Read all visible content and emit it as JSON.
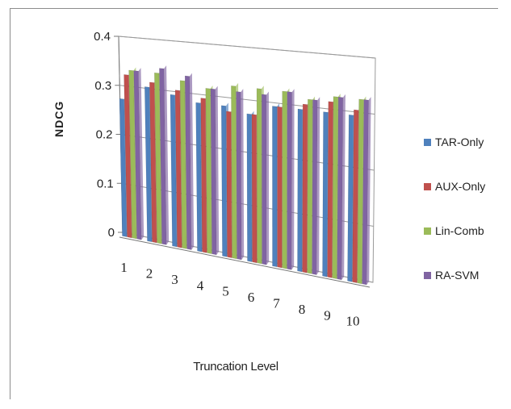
{
  "chart_data": {
    "type": "bar",
    "xlabel": "Truncation Level",
    "ylabel": "NDCG",
    "ylim": [
      0,
      0.4
    ],
    "yticks": [
      "0",
      "0.1",
      "0.2",
      "0.3",
      "0.4"
    ],
    "categories": [
      "1",
      "2",
      "3",
      "4",
      "5",
      "6",
      "7",
      "8",
      "9",
      "10"
    ],
    "series": [
      {
        "name": "TAR-Only",
        "color": "#4F81BD",
        "values": [
          0.28,
          0.31,
          0.3,
          0.29,
          0.29,
          0.28,
          0.3,
          0.3,
          0.3,
          0.3
        ]
      },
      {
        "name": "AUX-Only",
        "color": "#C0504D",
        "values": [
          0.33,
          0.32,
          0.31,
          0.3,
          0.28,
          0.28,
          0.3,
          0.31,
          0.32,
          0.31
        ]
      },
      {
        "name": "Lin-Comb",
        "color": "#9BBB59",
        "values": [
          0.34,
          0.34,
          0.33,
          0.32,
          0.33,
          0.33,
          0.33,
          0.32,
          0.33,
          0.33
        ]
      },
      {
        "name": "RA-SVM",
        "color": "#8064A2",
        "values": [
          0.34,
          0.35,
          0.34,
          0.32,
          0.32,
          0.32,
          0.33,
          0.32,
          0.33,
          0.33
        ]
      }
    ],
    "grid": true,
    "legend_position": "right"
  }
}
